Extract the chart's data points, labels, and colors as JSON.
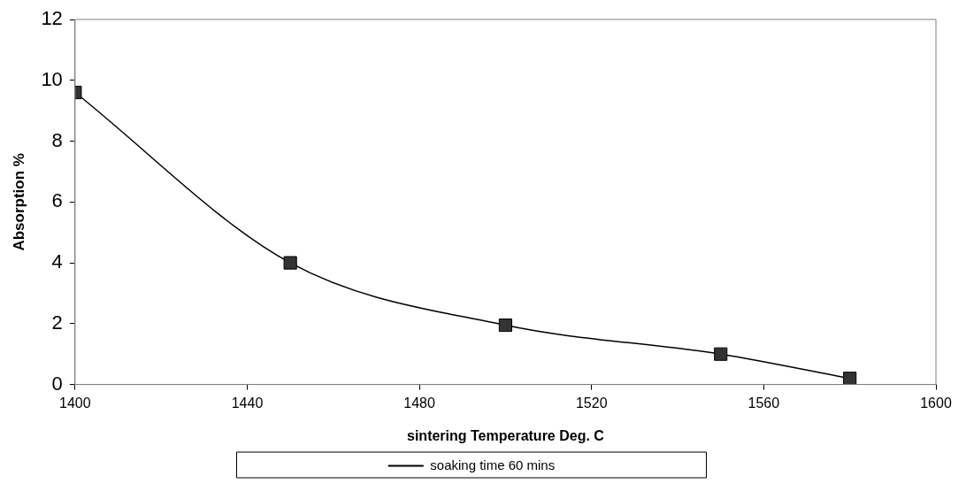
{
  "chart_data": {
    "type": "line",
    "xlabel": "sintering Temperature Deg. C",
    "ylabel": "Absorption %",
    "x": [
      1400,
      1450,
      1500,
      1550,
      1580
    ],
    "series": [
      {
        "name": "soaking time 60 mins",
        "color": "#000000",
        "values": [
          9.6,
          4.0,
          1.95,
          1.0,
          0.2
        ]
      }
    ],
    "xlim": [
      1400,
      1600
    ],
    "xticks": [
      1400,
      1440,
      1480,
      1520,
      1560,
      1600
    ],
    "ylim": [
      0,
      12
    ],
    "yticks": [
      0,
      2,
      4,
      6,
      8,
      10,
      12
    ],
    "grid": false,
    "legend": "bottom",
    "marker": "square",
    "line_style": "solid"
  }
}
